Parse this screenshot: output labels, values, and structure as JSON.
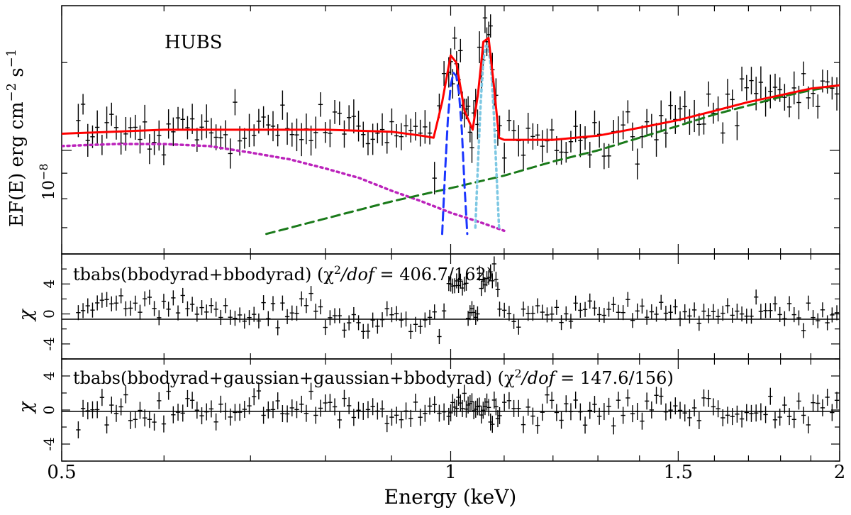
{
  "chart_data": [
    {
      "type": "line",
      "panel": "spectrum",
      "annotation": "HUBS",
      "ylabel": "EF(E) erg cm",
      "ylabel_sup1": "−2",
      "ylabel_mid": " s",
      "ylabel_sup2": "−1",
      "ytick_label": "10",
      "ytick_exp": "−8",
      "xlabel": "Energy (keV)",
      "xlim": [
        0.5,
        2.0
      ],
      "log_x": true,
      "log_y": true,
      "xticks": [
        {
          "value": 0.5,
          "label": "0.5"
        },
        {
          "value": 1.0,
          "label": "1"
        },
        {
          "value": 1.5,
          "label": "1.5"
        },
        {
          "value": 2.0,
          "label": "2"
        }
      ],
      "series": [
        {
          "role": "total model",
          "color": "#ff0000",
          "style": "solid",
          "x": [
            0.5,
            0.6,
            0.7,
            0.8,
            0.9,
            0.95,
            0.97,
            0.985,
            1.0,
            1.01,
            1.025,
            1.04,
            1.05,
            1.06,
            1.07,
            1.08,
            1.09,
            1.1,
            1.2,
            1.3,
            1.4,
            1.5,
            1.6,
            1.7,
            1.8,
            1.9,
            2.0
          ],
          "y": [
            1.08,
            1.1,
            1.1,
            1.1,
            1.09,
            1.07,
            1.06,
            1.25,
            1.55,
            1.5,
            1.2,
            1.1,
            1.3,
            1.65,
            1.68,
            1.35,
            1.06,
            1.05,
            1.05,
            1.07,
            1.11,
            1.15,
            1.2,
            1.25,
            1.29,
            1.33,
            1.35
          ]
        },
        {
          "role": "cool blackbody",
          "color": "#bb22bb",
          "style": "dotted",
          "x": [
            0.5,
            0.55,
            0.6,
            0.65,
            0.7,
            0.75,
            0.8,
            0.85,
            0.9,
            0.95,
            1.0,
            1.05,
            1.1
          ],
          "y": [
            1.02,
            1.03,
            1.03,
            1.02,
            0.99,
            0.96,
            0.92,
            0.88,
            0.83,
            0.79,
            0.75,
            0.72,
            0.69
          ]
        },
        {
          "role": "hot blackbody",
          "color": "#1a7a1a",
          "style": "dashed",
          "x": [
            0.72,
            0.8,
            0.9,
            1.0,
            1.1,
            1.2,
            1.3,
            1.4,
            1.5,
            1.6,
            1.7,
            1.8,
            1.9,
            2.0
          ],
          "y": [
            0.68,
            0.73,
            0.79,
            0.84,
            0.89,
            0.95,
            1.0,
            1.06,
            1.12,
            1.18,
            1.23,
            1.28,
            1.32,
            1.35
          ]
        },
        {
          "role": "gaussian line 1",
          "color": "#1a35ff",
          "style": "dashed",
          "x": [
            0.985,
            0.99,
            0.995,
            1.0,
            1.005,
            1.01,
            1.015,
            1.02,
            1.025,
            1.03
          ],
          "y": [
            0.68,
            0.9,
            1.15,
            1.35,
            1.43,
            1.41,
            1.3,
            1.1,
            0.85,
            0.68
          ]
        },
        {
          "role": "gaussian line 2",
          "color": "#7ec8e3",
          "style": "dotted",
          "x": [
            1.045,
            1.05,
            1.055,
            1.06,
            1.065,
            1.07,
            1.075,
            1.08,
            1.085,
            1.09
          ],
          "y": [
            0.7,
            0.95,
            1.25,
            1.52,
            1.62,
            1.6,
            1.45,
            1.18,
            0.9,
            0.7
          ]
        }
      ]
    },
    {
      "type": "scatter",
      "panel": "residuals-1",
      "label": "tbabs(bbodyrad+bbodyrad)",
      "stat_label": "(χ",
      "stat_sup": "2",
      "stat_mid": "/dof",
      "stat_value": " = 406.7/162)",
      "ylabel": "χ",
      "ylim": [
        -6,
        8
      ],
      "yticks": [
        {
          "value": 4,
          "label": "4"
        },
        {
          "value": 0,
          "label": "0"
        },
        {
          "value": -4,
          "label": "-4"
        }
      ],
      "zero_line": true
    },
    {
      "type": "scatter",
      "panel": "residuals-2",
      "label": "tbabs(bbodyrad+gaussian+gaussian+bbodyrad)",
      "stat_label": "(χ",
      "stat_sup": "2",
      "stat_mid": "/dof",
      "stat_value": " = 147.6/156)",
      "ylabel": "χ",
      "ylim": [
        -6,
        6
      ],
      "yticks": [
        {
          "value": 4,
          "label": "4"
        },
        {
          "value": 0,
          "label": "0"
        },
        {
          "value": -4,
          "label": "-4"
        }
      ],
      "zero_line": true
    }
  ]
}
